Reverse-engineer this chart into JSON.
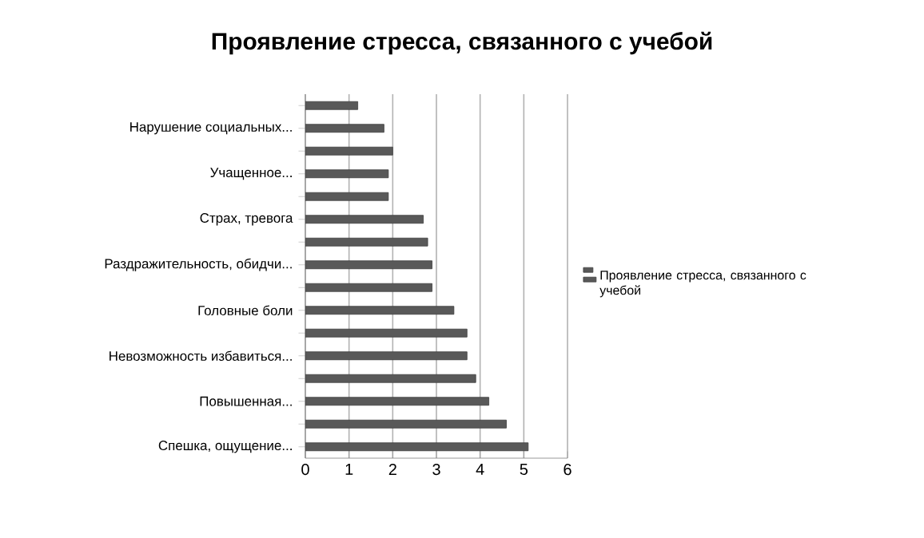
{
  "chart_data": {
    "type": "bar",
    "orientation": "horizontal",
    "title": "Проявление стресса, связанного с учебой",
    "categories": [
      null,
      "Нарушение социальных...",
      null,
      "Учащенное...",
      null,
      "Страх, тревога",
      null,
      "Раздражительность, обидчи...",
      null,
      "Головные боли",
      null,
      "Невозможность избавиться...",
      null,
      "Повышенная...",
      null,
      "Спешка, ощущение..."
    ],
    "series": [
      {
        "name": "Проявление стресса, связанного с учебой",
        "color": "#595959",
        "values": [
          1.2,
          1.8,
          2.0,
          1.9,
          1.9,
          2.7,
          2.8,
          2.9,
          2.9,
          3.4,
          3.7,
          3.7,
          3.9,
          4.2,
          4.6,
          5.1
        ]
      }
    ],
    "xlim": [
      0,
      6
    ],
    "xticks": [
      0,
      1,
      2,
      3,
      4,
      5,
      6
    ],
    "grid": "x",
    "legend": "right"
  }
}
